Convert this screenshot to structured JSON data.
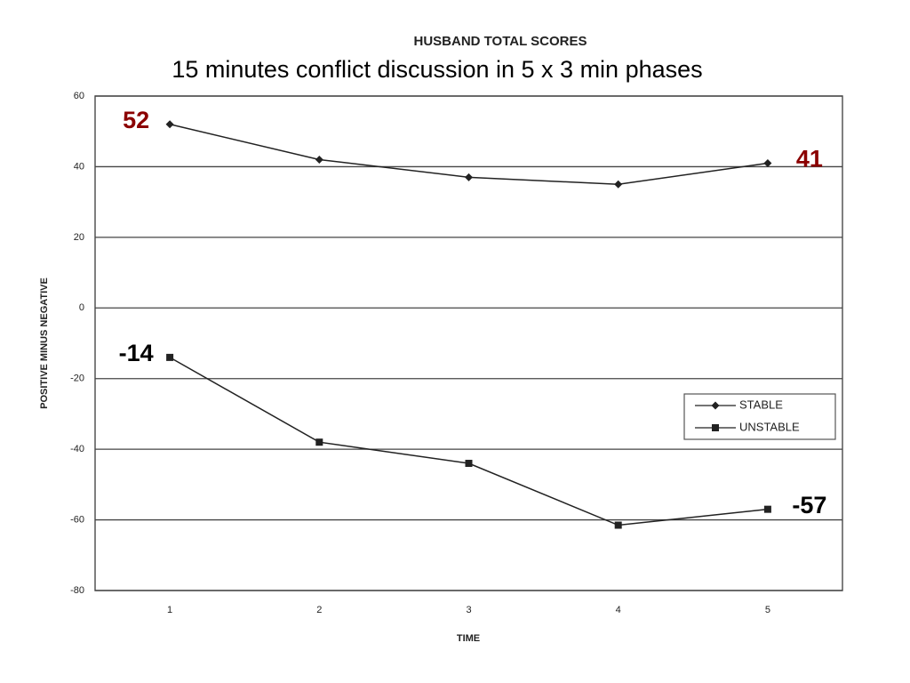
{
  "chart_data": {
    "type": "line",
    "title": "HUSBAND TOTAL SCORES",
    "subtitle": "15 minutes conflict discussion in 5 x 3 min phases",
    "x_label": "TIME",
    "y_label": "POSITIVE MINUS NEGATIVE",
    "categories": [
      "1",
      "2",
      "3",
      "4",
      "5"
    ],
    "series": [
      {
        "name": "STABLE",
        "color": "#222222",
        "marker": "diamond",
        "label_color": "#8b0000",
        "values": [
          52,
          42,
          37,
          35,
          41
        ],
        "value_labels": [
          "52",
          null,
          null,
          null,
          "41"
        ]
      },
      {
        "name": "UNSTABLE",
        "color": "#222222",
        "marker": "square",
        "label_color": "#000000",
        "values": [
          -14,
          -38,
          -44,
          -61.5,
          -57
        ],
        "value_labels": [
          "-14",
          null,
          null,
          null,
          "-57"
        ]
      }
    ],
    "ylim": [
      -80,
      60
    ],
    "yticks": [
      60,
      40,
      20,
      0,
      -20,
      -40,
      -60,
      -80
    ],
    "grid": true
  }
}
